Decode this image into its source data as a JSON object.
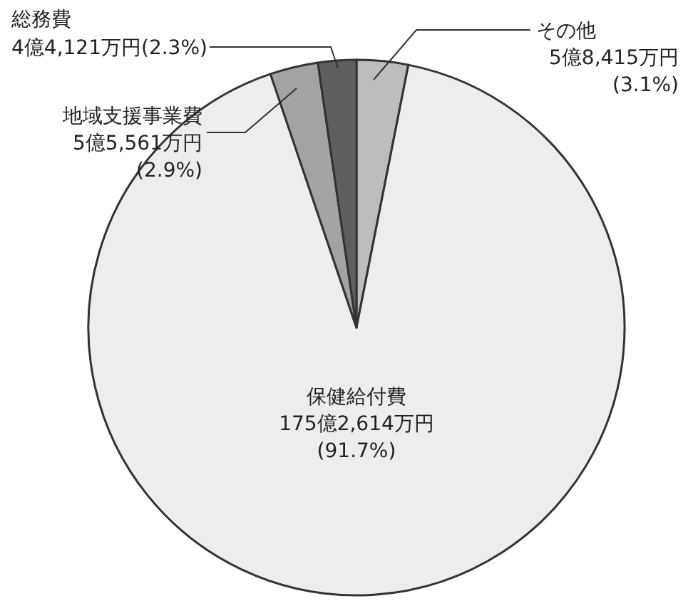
{
  "chart_data": {
    "type": "pie",
    "categories": [
      "その他",
      "保健給付費",
      "地域支援事業費",
      "総務費"
    ],
    "values": [
      3.1,
      91.7,
      2.9,
      2.3
    ],
    "value_labels": [
      "5億8,415万円\n(3.1%)",
      "175億2,614万円\n(91.7%)",
      "5億5,561万円\n(2.9%)",
      "4億4,121万円(2.3%)"
    ],
    "colors": [
      "#bdbdbd",
      "#ededed",
      "#a3a3a3",
      "#5f5f5f"
    ]
  }
}
